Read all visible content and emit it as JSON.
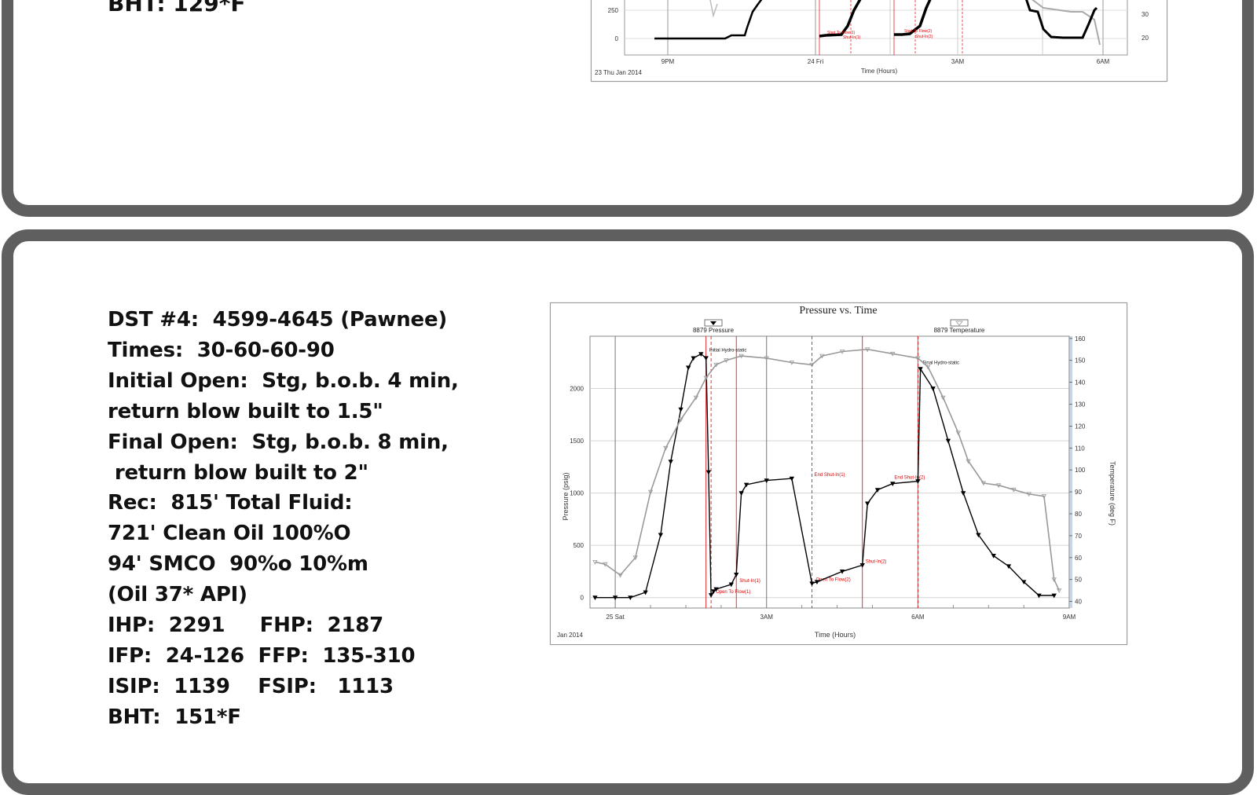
{
  "top_panel": {
    "bht_line": "BHT:  129*F",
    "chart": {
      "left_ticks": [
        "250",
        "0"
      ],
      "right_ticks": [
        "30",
        "20"
      ],
      "x_ticks": [
        "9PM",
        "24 Fri",
        "3AM",
        "6AM"
      ],
      "date_label": "23 Thu Jan 2014",
      "xlabel": "Time (Hours)",
      "markers": [
        "Start To Flow(1)",
        "Shut-In(1)",
        "Start To Flow(2)",
        "Shut-In(2)"
      ]
    }
  },
  "bottom_panel": {
    "notes": [
      "DST #4:  4599-4645 (Pawnee)",
      "Times:  30-60-60-90",
      "Initial Open:  Stg, b.o.b. 4 min,",
      "return blow built to 1.5\"",
      "Final Open:  Stg, b.o.b. 8 min,",
      " return blow built to 2\"",
      "Rec:  815' Total Fluid:",
      "721' Clean Oil 100%O",
      "94' SMCO  90%o 10%m",
      "(Oil 37* API)",
      "IHP:  2291     FHP:  2187",
      "IFP:  24-126  FFP:  135-310",
      "ISIP:  1139    FSIP:   1113",
      "BHT:  151*F"
    ]
  },
  "chart_data": {
    "type": "line",
    "title": "Pressure vs. Time",
    "legend": [
      "8879 Pressure",
      "8879 Temperature"
    ],
    "legend_placement": "top",
    "xlabel": "Time (Hours)",
    "ylabel": "Pressure (psig)",
    "y2label": "Temperature (deg F)",
    "date_label": "Jan 2014",
    "x_ticks": [
      "25 Sat",
      "3AM",
      "6AM",
      "9AM"
    ],
    "x_range_hours": [
      -0.5,
      9.0
    ],
    "ylim": [
      -100,
      2500
    ],
    "y_ticks": [
      0,
      500,
      1000,
      1500,
      2000
    ],
    "y2lim": [
      37,
      161
    ],
    "y2_ticks": [
      40,
      50,
      60,
      70,
      80,
      90,
      100,
      110,
      120,
      130,
      140,
      150,
      160
    ],
    "grid": true,
    "series": [
      {
        "name": "8879 Pressure",
        "axis": "left",
        "color": "#000000",
        "x": [
          -0.4,
          0,
          0.3,
          0.6,
          0.9,
          1.1,
          1.3,
          1.45,
          1.55,
          1.7,
          1.8,
          1.85,
          1.9,
          1.95,
          2.0,
          2.3,
          2.4,
          2.5,
          2.6,
          3.0,
          3.5,
          3.9,
          4.0,
          4.5,
          4.9,
          5.0,
          5.2,
          5.5,
          6.0,
          6.05,
          6.3,
          6.6,
          6.9,
          7.2,
          7.5,
          7.8,
          8.1,
          8.4,
          8.7
        ],
        "values": [
          0,
          0,
          0,
          50,
          600,
          1300,
          1800,
          2200,
          2290,
          2330,
          2291,
          1200,
          24,
          60,
          80,
          126,
          220,
          1000,
          1080,
          1120,
          1139,
          135,
          150,
          250,
          310,
          900,
          1030,
          1090,
          1113,
          2187,
          2000,
          1500,
          1000,
          600,
          400,
          300,
          150,
          20,
          20
        ]
      },
      {
        "name": "8879 Temperature",
        "axis": "right",
        "color": "#999999",
        "x": [
          -0.4,
          -0.2,
          0.1,
          0.4,
          0.7,
          1.0,
          1.3,
          1.6,
          1.8,
          2.0,
          2.2,
          2.5,
          3.0,
          3.5,
          3.9,
          4.1,
          4.5,
          5.0,
          5.5,
          6.0,
          6.2,
          6.5,
          6.8,
          7.0,
          7.3,
          7.6,
          7.9,
          8.2,
          8.5,
          8.7,
          8.8
        ],
        "values": [
          58,
          57,
          52,
          60,
          90,
          110,
          123,
          133,
          142,
          148,
          150,
          152,
          151,
          149,
          148,
          152,
          154,
          155,
          153,
          151,
          147,
          133,
          117,
          104,
          94,
          93,
          91,
          89,
          88,
          50,
          45
        ]
      }
    ],
    "events": [
      {
        "label": "Initial Hydro-static",
        "x": 1.8
      },
      {
        "label": "Open To Flow(1)",
        "x": 1.9
      },
      {
        "label": "Shut-In(1)",
        "x": 2.4
      },
      {
        "label": "End Shut-In(1)",
        "x": 3.9
      },
      {
        "label": "Open To Flow(2)",
        "x": 3.9
      },
      {
        "label": "Shut-In(2)",
        "x": 4.9
      },
      {
        "label": "End Shut-In(2)",
        "x": 6.0
      },
      {
        "label": "Final Hydro-static",
        "x": 6.0
      }
    ],
    "accent_color": "#e00000"
  }
}
